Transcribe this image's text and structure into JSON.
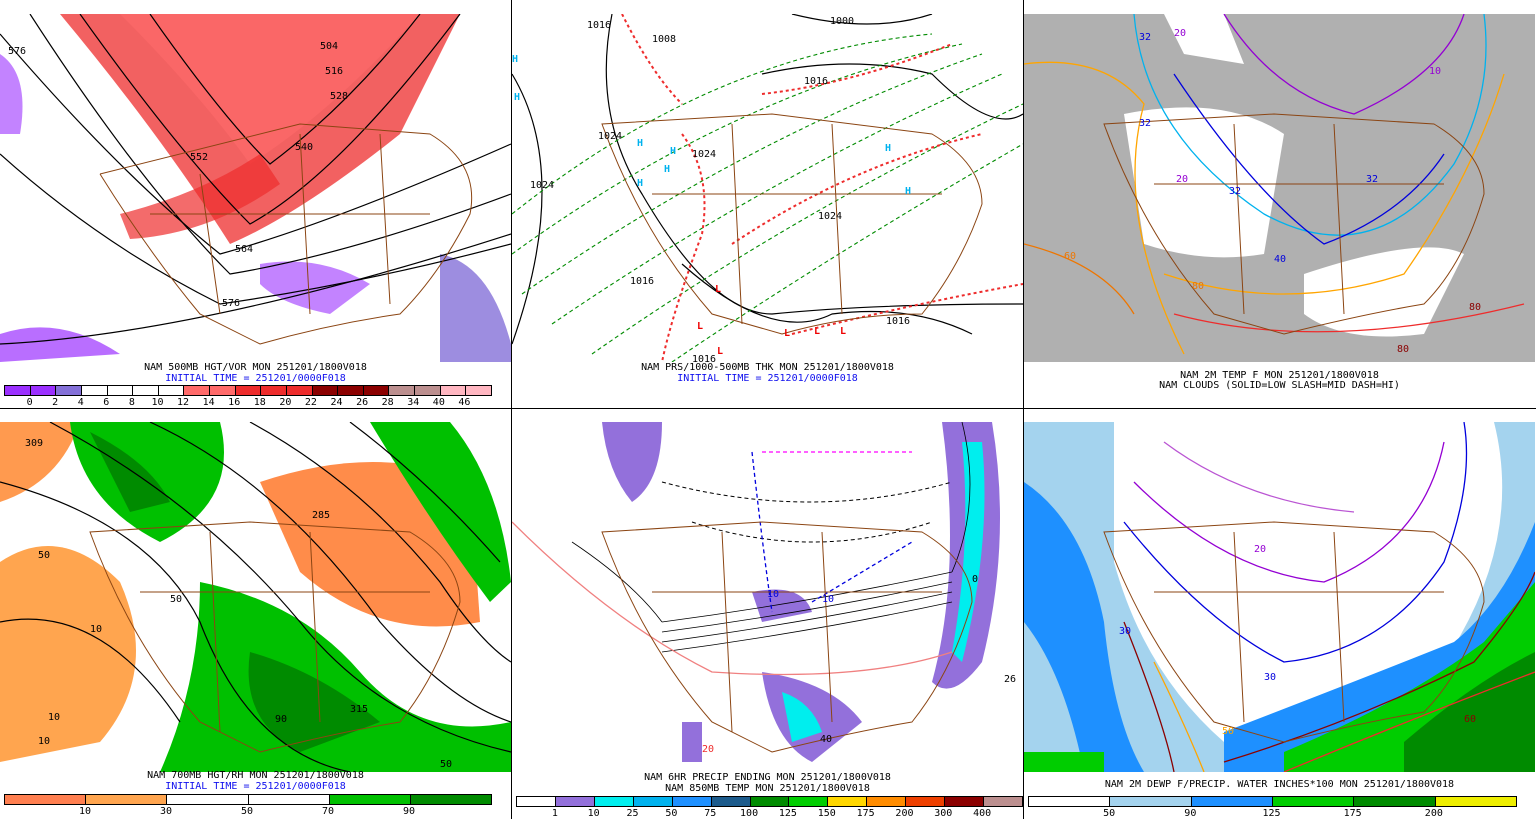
{
  "panels": [
    {
      "id": "p1",
      "line1": "NAM 500MB HGT/VOR MON 251201/1800V018",
      "line2": "INITIAL TIME = 251201/0000F018",
      "colorbar": [
        "#9b30ff",
        "#9b30ff",
        "#8470d8",
        "#ffffff",
        "#ffffff",
        "#ffffff",
        "#ffffff",
        "#ff6a6a",
        "#ff6a6a",
        "#ee2c2c",
        "#ee2c2c",
        "#ee2c2c",
        "#8b0000",
        "#8b0000",
        "#8b0000",
        "#bc8f8f",
        "#bc8f8f",
        "#ffb6c1",
        "#ffb6c1"
      ],
      "ticks": [
        "0",
        "2",
        "4",
        "6",
        "8",
        "10",
        "12",
        "14",
        "16",
        "18",
        "20",
        "22",
        "24",
        "26",
        "28",
        "34",
        "40",
        "46"
      ],
      "labels": [
        "576",
        "504",
        "516",
        "528",
        "552",
        "540",
        "564",
        "576"
      ]
    },
    {
      "id": "p2",
      "line1": "NAM PRS/1000-500MB THK MON 251201/1800V018",
      "line2": "INITIAL TIME = 251201/0000F018",
      "labels": [
        "1016",
        "1008",
        "1000",
        "1016",
        "1024",
        "1024",
        "1024",
        "1024",
        "1016",
        "1016",
        "1016"
      ],
      "highs": [
        "H",
        "H",
        "H",
        "H",
        "H",
        "H",
        "H",
        "H"
      ],
      "lows": [
        "L",
        "L",
        "L",
        "L",
        "L",
        "L"
      ]
    },
    {
      "id": "p3",
      "line1": "NAM 2M TEMP F MON 251201/1800V018",
      "line2": "NAM CLOUDS (SOLID=LOW SLASH=MID DASH=HI)",
      "labels": [
        "32",
        "20",
        "32",
        "20",
        "32",
        "10",
        "32",
        "40",
        "60",
        "80",
        "80",
        "80"
      ]
    },
    {
      "id": "p4",
      "line1": "NAM 700MB HGT/RH MON 251201/1800V018",
      "line2": "INITIAL TIME = 251201/0000F018",
      "colorbar": [
        "#ff7f50",
        "#ffa54f",
        "#ffffff",
        "#ffffff",
        "#00c000",
        "#008b00"
      ],
      "ticks": [
        "10",
        "30",
        "50",
        "70",
        "90"
      ],
      "labels": [
        "309",
        "50",
        "10",
        "285",
        "50",
        "10",
        "315",
        "90",
        "10",
        "50"
      ]
    },
    {
      "id": "p5",
      "line1": "NAM 6HR PRECIP ENDING MON 251201/1800V018",
      "line2": "NAM 850MB TEMP MON 251201/1800V018",
      "colorbar": [
        "#ffffff",
        "#9370db",
        "#00eeee",
        "#00b2ee",
        "#1e90ff",
        "#1c5b8c",
        "#008b00",
        "#00cd00",
        "#ffd700",
        "#ff8c00",
        "#ee4000",
        "#8b0000",
        "#bc8f8f"
      ],
      "ticks": [
        "1",
        "10",
        "25",
        "50",
        "75",
        "100",
        "125",
        "150",
        "175",
        "200",
        "300",
        "400"
      ],
      "labels": [
        "10",
        "0",
        "10",
        "20",
        "26",
        "40"
      ]
    },
    {
      "id": "p6",
      "line1": "NAM 2M DEWP F/PRECIP. WATER INCHES*100 MON 251201/1800V018",
      "colorbar": [
        "#ffffff",
        "#a4d3ee",
        "#1e90ff",
        "#00cd00",
        "#008b00",
        "#eeee00"
      ],
      "ticks": [
        "50",
        "90",
        "125",
        "175",
        "200"
      ],
      "labels": [
        "30",
        "20",
        "30",
        "50",
        "60"
      ]
    }
  ]
}
